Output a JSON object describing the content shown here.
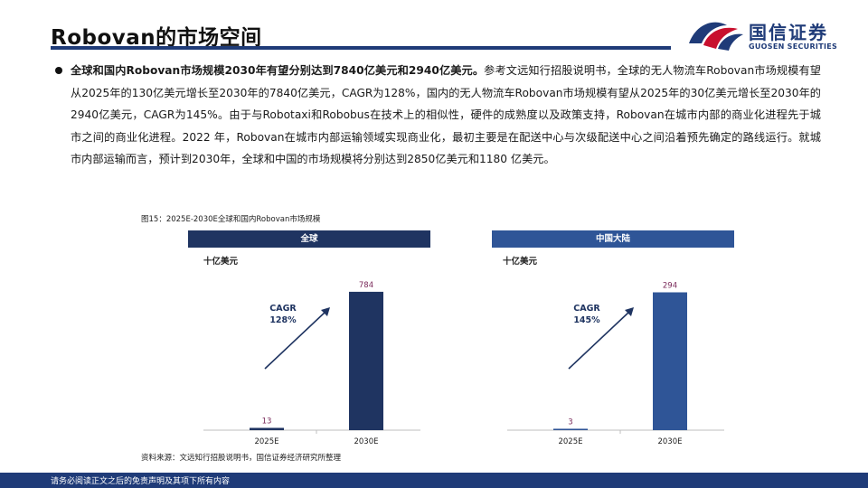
{
  "header": {
    "title": "Robovan的市场空间",
    "logo_cn": "国信证券",
    "logo_en": "GUOSEN SECURITIES"
  },
  "body": {
    "lead_bold": "全球和国内Robovan市场规模2030年有望分别达到7840亿美元和2940亿美元。",
    "text": "参考文远知行招股说明书，全球的无人物流车Robovan市场规模有望从2025年的130亿美元增长至2030年的7840亿美元，CAGR为128%，国内的无人物流车Robovan市场规模有望从2025年的30亿美元增长至2030年的2940亿美元，CAGR为145%。由于与Robotaxi和Robobus在技术上的相似性，硬件的成熟度以及政策支持，Robovan在城市内部的商业化进程先于城市之间的商业化进程。2022 年，Robovan在城市内部运输领域实现商业化，最初主要是在配送中心与次级配送中心之间沿着预先确定的路线运行。就城市内部运输而言，预计到2030年，全球和中国的市场规模将分别达到2850亿美元和1180 亿美元。"
  },
  "figure": {
    "caption": "图15：2025E-2030E全球和国内Robovan市场规模",
    "source": "资料来源：文远知行招股说明书，国信证券经济研究所整理",
    "unit_label": "十亿美元"
  },
  "chart_data": [
    {
      "type": "bar",
      "title": "全球",
      "categories": [
        "2025E",
        "2030E"
      ],
      "values": [
        13,
        784
      ],
      "ylabel": "十亿美元",
      "ylim": [
        0,
        850
      ],
      "annotation": {
        "line1": "CAGR",
        "line2": "128%"
      },
      "bar_color": "#1f3461",
      "label_color": "#7a2a5a"
    },
    {
      "type": "bar",
      "title": "中国大陆",
      "categories": [
        "2025E",
        "2030E"
      ],
      "values": [
        3,
        294
      ],
      "ylabel": "十亿美元",
      "ylim": [
        0,
        320
      ],
      "annotation": {
        "line1": "CAGR",
        "line2": "145%"
      },
      "bar_color": "#2f5597",
      "label_color": "#7a2a5a"
    }
  ],
  "colors": {
    "navy": "#1f3b78",
    "left_header": "#1f3461",
    "right_header": "#2f5597",
    "logo_red": "#c8102e"
  },
  "footer": {
    "disclaimer": "请务必阅读正文之后的免责声明及其项下所有内容"
  }
}
